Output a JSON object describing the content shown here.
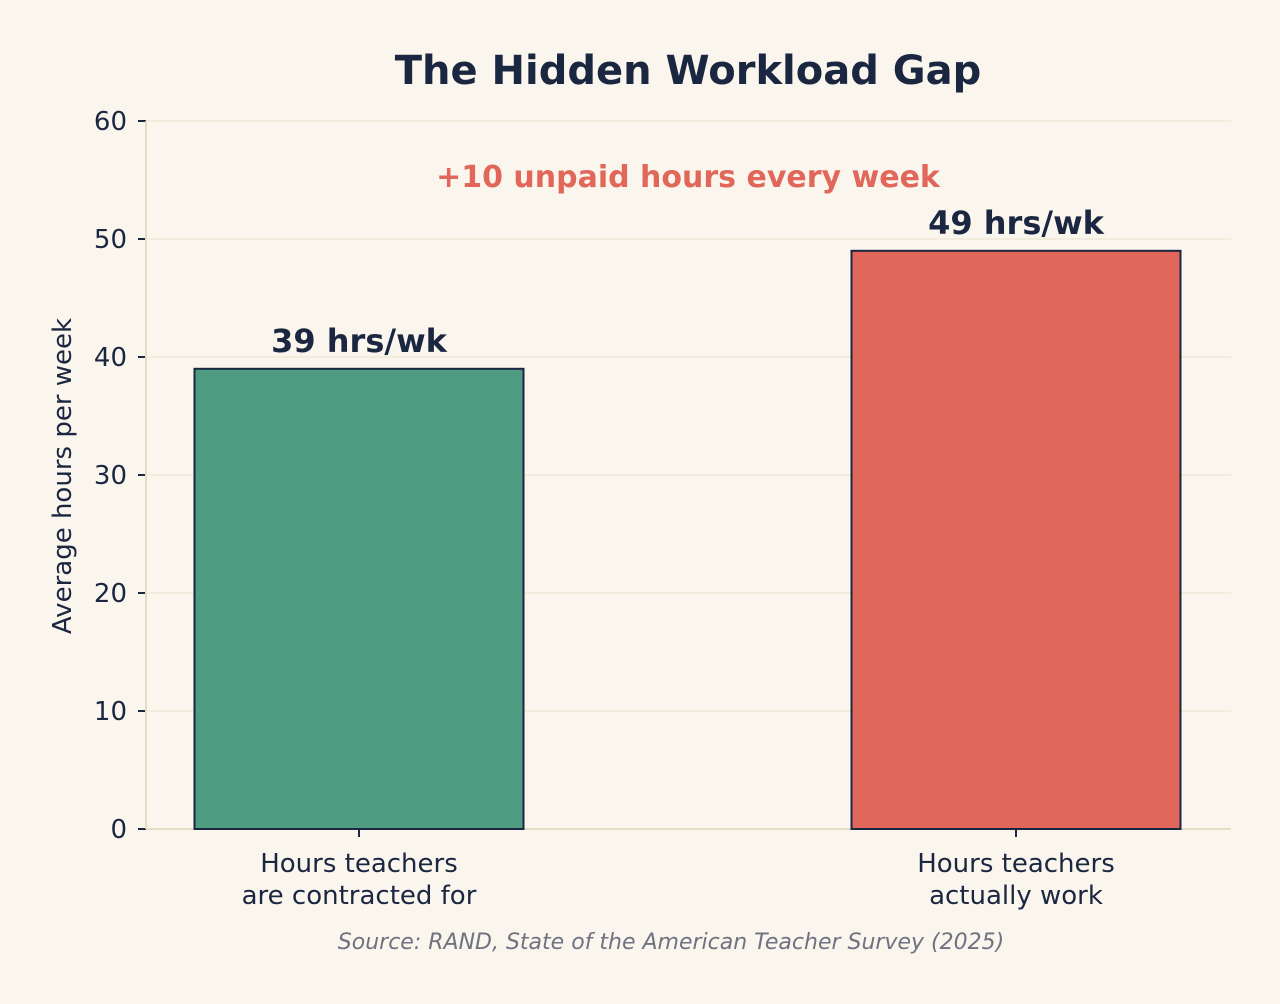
{
  "chart_data": {
    "type": "bar",
    "title": "The Hidden Workload Gap",
    "xlabel": "",
    "ylabel": "Average hours per week",
    "ylim": [
      0,
      60
    ],
    "yticks": [
      0,
      10,
      20,
      30,
      40,
      50,
      60
    ],
    "categories": [
      [
        "Hours teachers",
        "are contracted for"
      ],
      [
        "Hours teachers",
        "actually work"
      ]
    ],
    "values": [
      39,
      49
    ],
    "data_labels": [
      "39 hrs/wk",
      "49 hrs/wk"
    ],
    "bar_colors": [
      "#4f9c83",
      "#e2675b"
    ],
    "annotation": "+10 unpaid hours every week",
    "source": "Source: RAND, State of the American Teacher Survey (2025)",
    "grid": true,
    "legend": "none"
  },
  "colors": {
    "background": "#faf6ee",
    "text": "#1b2640",
    "annotation": "#e2675b",
    "source": "#6f7280",
    "grid": "#efe8d6",
    "axis": "#e6dbc4",
    "bar_edge": "#1b2640"
  }
}
